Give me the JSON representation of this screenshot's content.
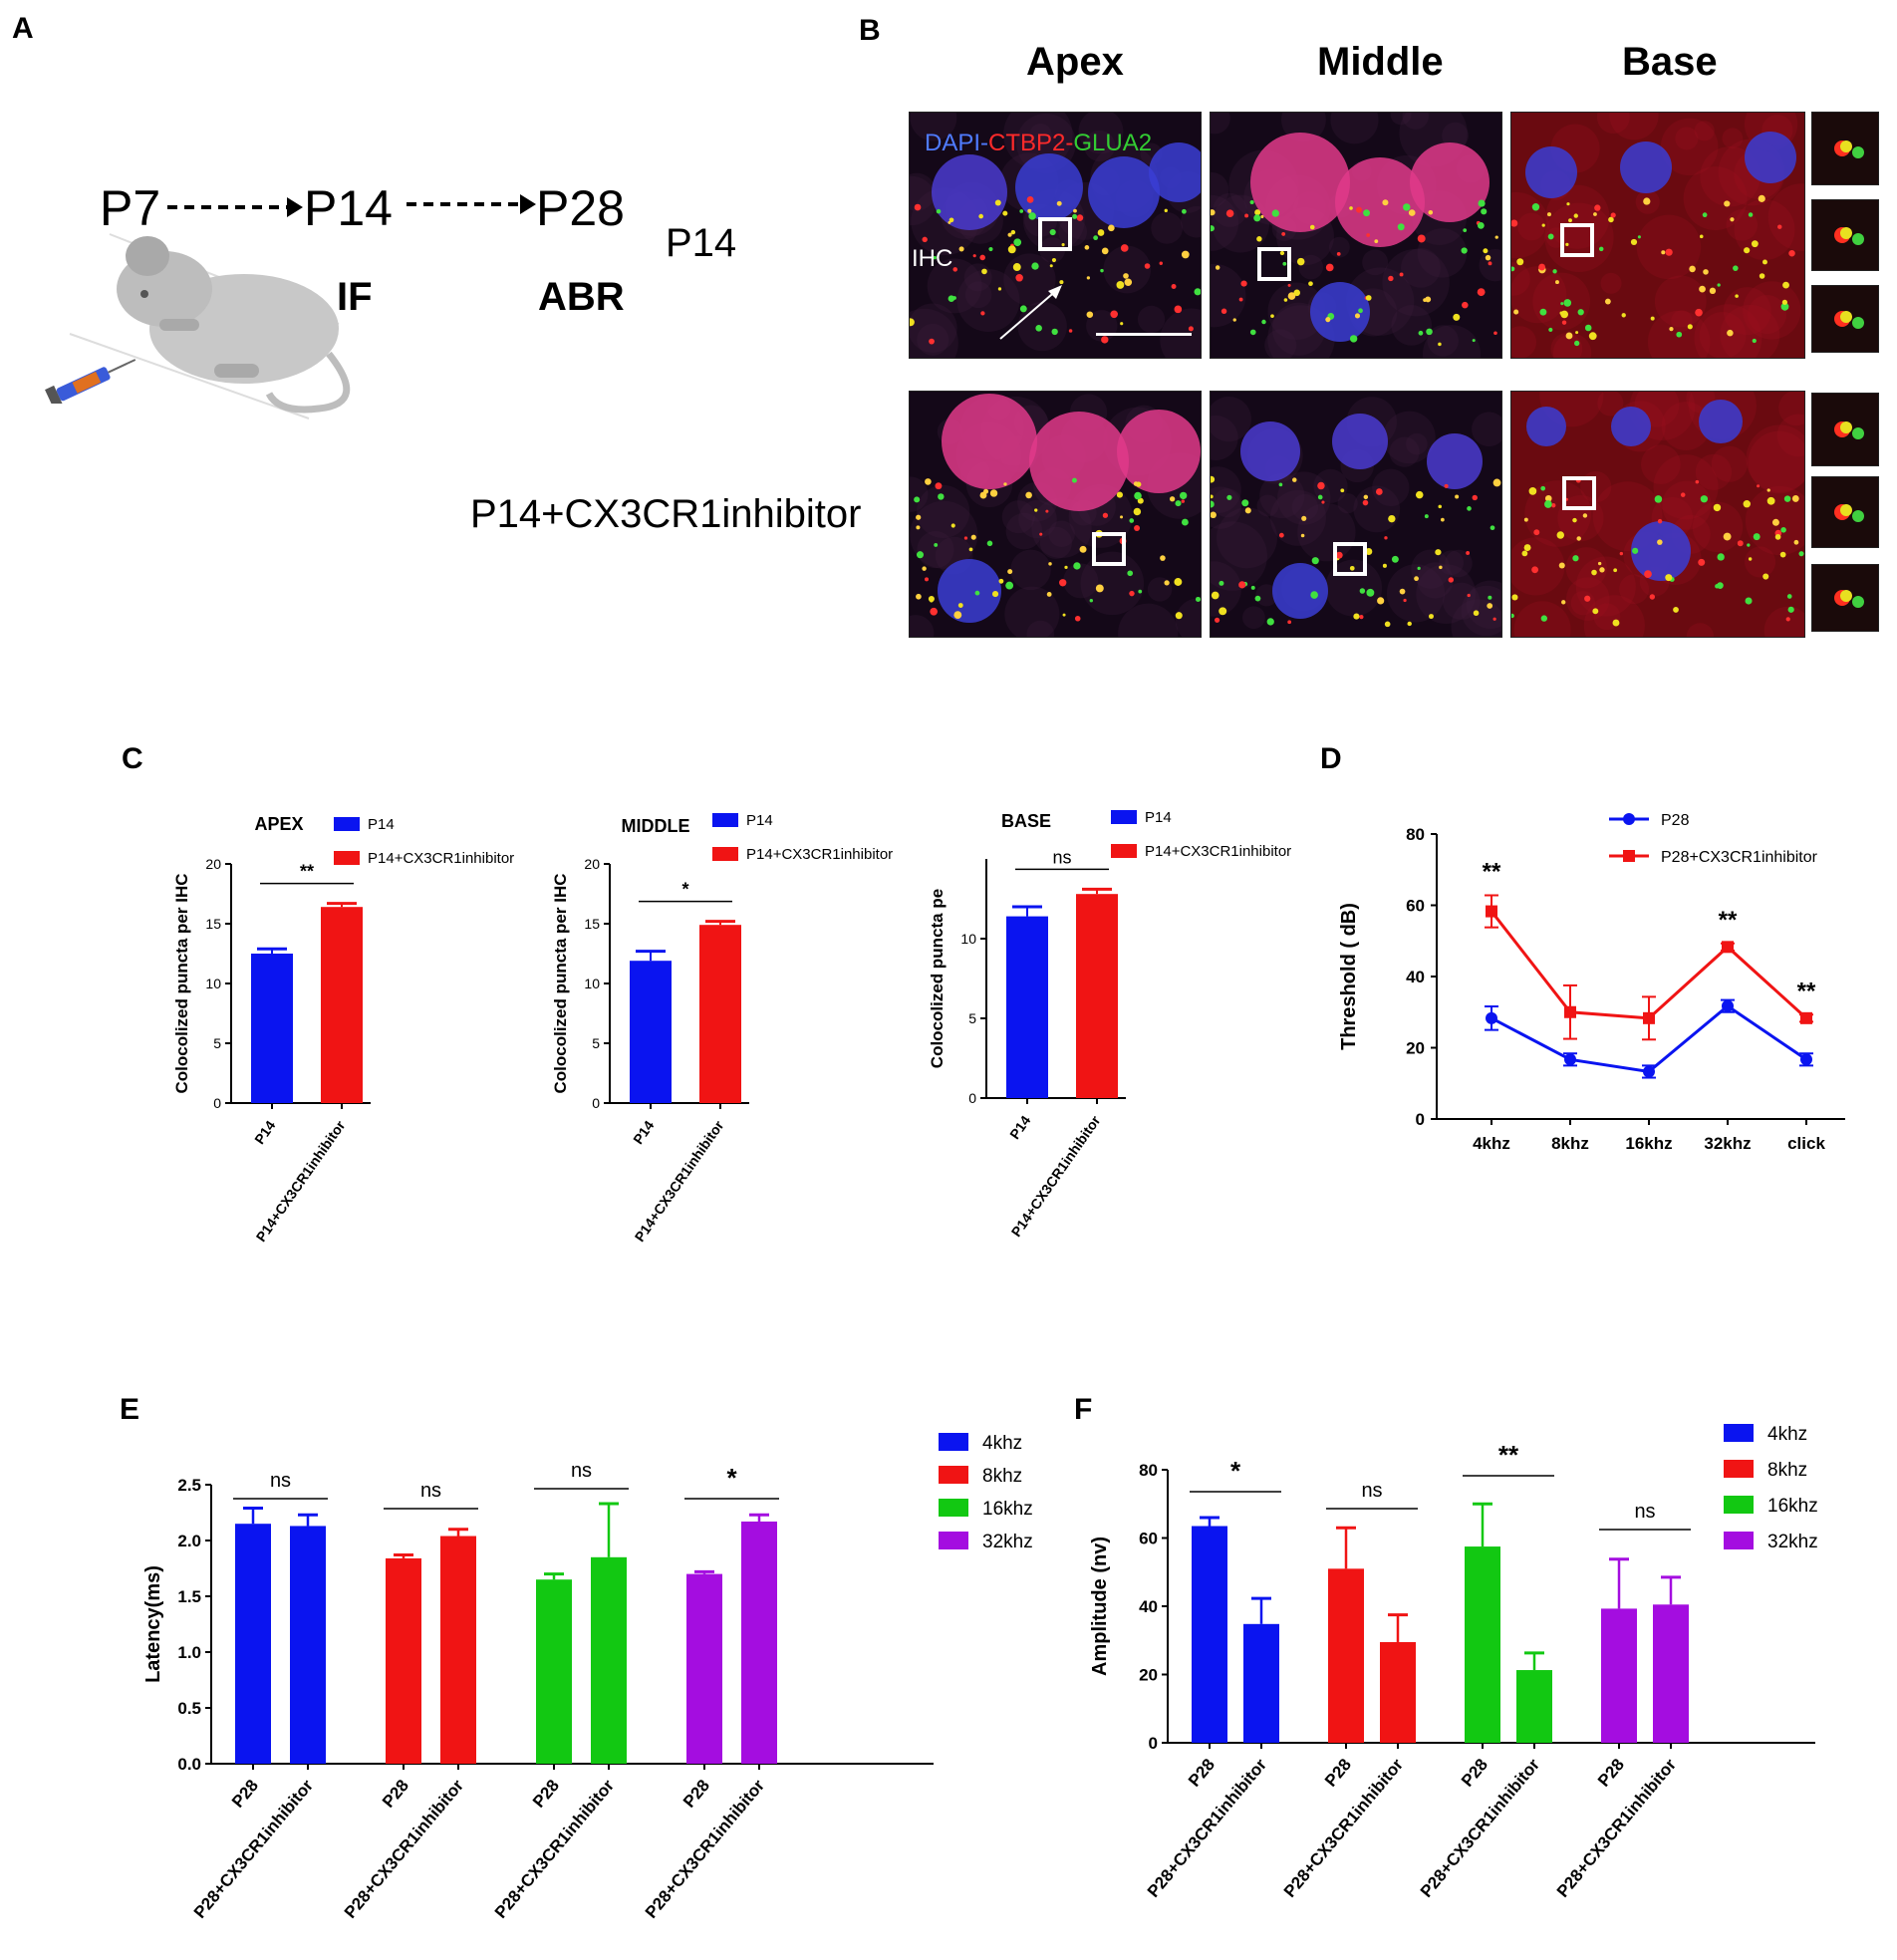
{
  "panels": {
    "A": "A",
    "B": "B",
    "C": "C",
    "D": "D",
    "E": "E",
    "F": "F"
  },
  "panelA": {
    "timeline": [
      "P7",
      "P14",
      "P28"
    ],
    "labels": [
      "IF",
      "ABR"
    ]
  },
  "panelB": {
    "columns": [
      "Apex",
      "Middle",
      "Base"
    ],
    "stain": {
      "dapi": "DAPI-",
      "ctbp2": "CTBP2-",
      "glua2": "GLUA2"
    },
    "ihc": "IHC",
    "row_labels": [
      "P14",
      "P14+CX3CR1inhibitor"
    ],
    "colors": {
      "dapi": "#3a5bd9",
      "ctbp2": "#e02020",
      "glua2": "#2fb82f"
    }
  },
  "chart_data": [
    {
      "id": "C-apex",
      "type": "bar",
      "title": "APEX",
      "categories": [
        "P14",
        "P14+CX3CR1inhibitor"
      ],
      "values": [
        12.5,
        16.4
      ],
      "errors": [
        0.4,
        0.3
      ],
      "ylabel": "Colocolized puncta per IHC",
      "ylim": [
        0,
        20
      ],
      "yticks": [
        0,
        5,
        10,
        15,
        20
      ],
      "legend": [
        "P14",
        "P14+CX3CR1inhibitor"
      ],
      "legend_position": "top-right",
      "colors": [
        "#0a14f0",
        "#f01414"
      ],
      "significance": "**"
    },
    {
      "id": "C-middle",
      "type": "bar",
      "title": "MIDDLE",
      "categories": [
        "P14",
        "P14+CX3CR1inhibitor"
      ],
      "values": [
        11.9,
        14.9
      ],
      "errors": [
        0.8,
        0.3
      ],
      "ylabel": "Colocolized puncta per IHC",
      "ylim": [
        0,
        20
      ],
      "yticks": [
        0,
        5,
        10,
        15,
        20
      ],
      "legend": [
        "P14",
        "P14+CX3CR1inhibitor"
      ],
      "legend_position": "top-right",
      "colors": [
        "#0a14f0",
        "#f01414"
      ],
      "significance": "*"
    },
    {
      "id": "C-base",
      "type": "bar",
      "title": "BASE",
      "categories": [
        "P14",
        "P14+CX3CR1inhibitor"
      ],
      "values": [
        11.4,
        12.8
      ],
      "errors": [
        0.6,
        0.3
      ],
      "ylabel": "Colocolized puncta pe",
      "ylim": [
        0,
        15
      ],
      "yticks": [
        0,
        5,
        10
      ],
      "legend": [
        "P14",
        "P14+CX3CR1inhibitor"
      ],
      "legend_position": "top-right",
      "colors": [
        "#0a14f0",
        "#f01414"
      ],
      "significance": "ns"
    },
    {
      "id": "D",
      "type": "line",
      "categories": [
        "4khz",
        "8khz",
        "16khz",
        "32khz",
        "click"
      ],
      "series": [
        {
          "name": "P28",
          "values": [
            28.3,
            16.7,
            13.3,
            31.7,
            16.7
          ],
          "errors": [
            3.3,
            1.7,
            1.7,
            1.7,
            1.7
          ],
          "color": "#0a14f0",
          "marker": "circle"
        },
        {
          "name": "P28+CX3CR1inhibitor",
          "values": [
            58.3,
            30,
            28.3,
            48.3,
            28.3
          ],
          "errors": [
            4.5,
            7.5,
            6,
            1,
            1
          ],
          "color": "#f01414",
          "marker": "square"
        }
      ],
      "ylabel": "Threshold ( dB)",
      "ylim": [
        0,
        80
      ],
      "yticks": [
        0,
        20,
        40,
        60,
        80
      ],
      "annotations": [
        {
          "at": "4khz",
          "text": "**"
        },
        {
          "at": "32khz",
          "text": "**"
        },
        {
          "at": "click",
          "text": "**"
        }
      ],
      "legend_position": "top-right"
    },
    {
      "id": "E",
      "type": "bar",
      "groups": [
        "4khz",
        "8khz",
        "16khz",
        "32khz"
      ],
      "categories": [
        "P28",
        "P28+CX3CR1inhibitor"
      ],
      "series": [
        {
          "name": "4khz",
          "values": [
            2.15,
            2.13
          ],
          "errors": [
            0.14,
            0.1
          ],
          "color": "#0a14f0"
        },
        {
          "name": "8khz",
          "values": [
            1.84,
            2.04
          ],
          "errors": [
            0.03,
            0.06
          ],
          "color": "#f01414"
        },
        {
          "name": "16khz",
          "values": [
            1.65,
            1.85
          ],
          "errors": [
            0.05,
            0.48
          ],
          "color": "#12c812"
        },
        {
          "name": "32khz",
          "values": [
            1.7,
            2.17
          ],
          "errors": [
            0.02,
            0.06
          ],
          "color": "#a40de0"
        }
      ],
      "significance": [
        "ns",
        "ns",
        "ns",
        "*"
      ],
      "ylabel": "Latency(ms)",
      "ylim": [
        0,
        2.5
      ],
      "yticks": [
        "0.0",
        "0.5",
        "1.0",
        "1.5",
        "2.0",
        "2.5"
      ],
      "legend_position": "right"
    },
    {
      "id": "F",
      "type": "bar",
      "groups": [
        "4khz",
        "8khz",
        "16khz",
        "32khz"
      ],
      "categories": [
        "P28",
        "P28+CX3CR1inhibitor"
      ],
      "series": [
        {
          "name": "4khz",
          "values": [
            63.5,
            34.8
          ],
          "errors": [
            2.5,
            7.5
          ],
          "color": "#0a14f0"
        },
        {
          "name": "8khz",
          "values": [
            51,
            29.5
          ],
          "errors": [
            12,
            8
          ],
          "color": "#f01414"
        },
        {
          "name": "16khz",
          "values": [
            57.5,
            21.3
          ],
          "errors": [
            12.5,
            5
          ],
          "color": "#12c812"
        },
        {
          "name": "32khz",
          "values": [
            39.3,
            40.5
          ],
          "errors": [
            14.5,
            8
          ],
          "color": "#a40de0"
        }
      ],
      "significance": [
        "*",
        "ns",
        "**",
        "ns"
      ],
      "ylabel": "Amplitude (nv)",
      "ylim": [
        0,
        80
      ],
      "yticks": [
        0,
        20,
        40,
        60,
        80
      ],
      "legend_position": "right"
    }
  ]
}
